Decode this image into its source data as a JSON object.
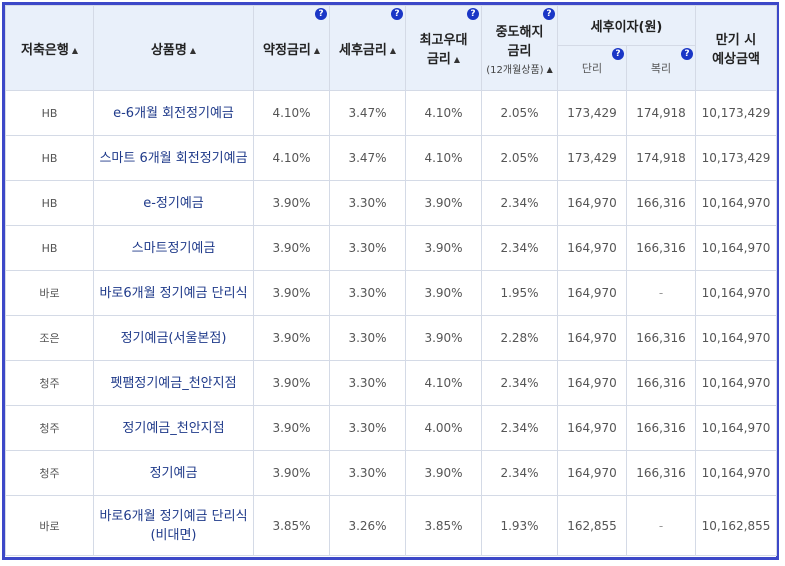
{
  "headers": {
    "bank": "저축은행",
    "product": "상품명",
    "agreed_rate": "약정금리",
    "after_tax_rate": "세후금리",
    "max_rate_line1": "최고우대",
    "max_rate_line2": "금리",
    "early_line1": "중도해지",
    "early_line2": "금리",
    "early_sub": "(12개월상품)",
    "interest_group": "세후이자(원)",
    "simple": "단리",
    "compound": "복리",
    "maturity_line1": "만기 시",
    "maturity_line2": "예상금액",
    "sort_icon": "▲",
    "help_icon": "?"
  },
  "rows": [
    {
      "bank": "HB",
      "product": "e-6개월 회전정기예금",
      "product2": "",
      "agreed": "4.10%",
      "after_tax": "3.47%",
      "max": "4.10%",
      "early": "2.05%",
      "simple": "173,429",
      "compound": "174,918",
      "maturity": "10,173,429"
    },
    {
      "bank": "HB",
      "product": "스마트 6개월 회전정기예금",
      "product2": "",
      "agreed": "4.10%",
      "after_tax": "3.47%",
      "max": "4.10%",
      "early": "2.05%",
      "simple": "173,429",
      "compound": "174,918",
      "maturity": "10,173,429"
    },
    {
      "bank": "HB",
      "product": "e-정기예금",
      "product2": "",
      "agreed": "3.90%",
      "after_tax": "3.30%",
      "max": "3.90%",
      "early": "2.34%",
      "simple": "164,970",
      "compound": "166,316",
      "maturity": "10,164,970"
    },
    {
      "bank": "HB",
      "product": "스마트정기예금",
      "product2": "",
      "agreed": "3.90%",
      "after_tax": "3.30%",
      "max": "3.90%",
      "early": "2.34%",
      "simple": "164,970",
      "compound": "166,316",
      "maturity": "10,164,970"
    },
    {
      "bank": "바로",
      "product": "바로6개월 정기예금 단리식",
      "product2": "",
      "agreed": "3.90%",
      "after_tax": "3.30%",
      "max": "3.90%",
      "early": "1.95%",
      "simple": "164,970",
      "compound": "-",
      "maturity": "10,164,970"
    },
    {
      "bank": "조은",
      "product": "정기예금(서울본점)",
      "product2": "",
      "agreed": "3.90%",
      "after_tax": "3.30%",
      "max": "3.90%",
      "early": "2.28%",
      "simple": "164,970",
      "compound": "166,316",
      "maturity": "10,164,970"
    },
    {
      "bank": "청주",
      "product": "펫팸정기예금_천안지점",
      "product2": "",
      "agreed": "3.90%",
      "after_tax": "3.30%",
      "max": "4.10%",
      "early": "2.34%",
      "simple": "164,970",
      "compound": "166,316",
      "maturity": "10,164,970"
    },
    {
      "bank": "청주",
      "product": "정기예금_천안지점",
      "product2": "",
      "agreed": "3.90%",
      "after_tax": "3.30%",
      "max": "4.00%",
      "early": "2.34%",
      "simple": "164,970",
      "compound": "166,316",
      "maturity": "10,164,970"
    },
    {
      "bank": "청주",
      "product": "정기예금",
      "product2": "",
      "agreed": "3.90%",
      "after_tax": "3.30%",
      "max": "3.90%",
      "early": "2.34%",
      "simple": "164,970",
      "compound": "166,316",
      "maturity": "10,164,970"
    },
    {
      "bank": "바로",
      "product": "바로6개월 정기예금 단리식",
      "product2": "(비대면)",
      "agreed": "3.85%",
      "after_tax": "3.26%",
      "max": "3.85%",
      "early": "1.93%",
      "simple": "162,855",
      "compound": "-",
      "maturity": "10,162,855"
    }
  ]
}
